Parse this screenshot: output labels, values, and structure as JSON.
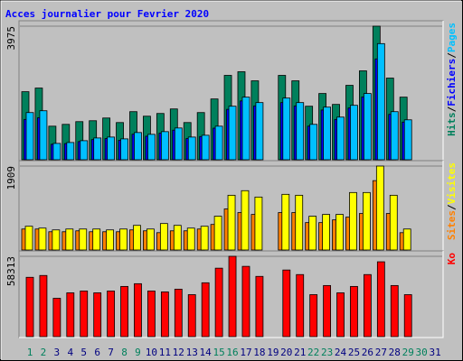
{
  "chart_data": [
    {
      "type": "bar",
      "title": "Acces journalier pour Fevrier 2020",
      "categories": [
        "1",
        "2",
        "3",
        "4",
        "5",
        "6",
        "7",
        "8",
        "9",
        "10",
        "11",
        "12",
        "13",
        "14",
        "15",
        "16",
        "17",
        "18",
        "19",
        "20",
        "21",
        "22",
        "23",
        "24",
        "25",
        "26",
        "27",
        "28",
        "29",
        "30",
        "31"
      ],
      "x_label_colors": [
        "#00805c",
        "#00805c",
        "#000080",
        "#000080",
        "#000080",
        "#000080",
        "#000080",
        "#00805c",
        "#00805c",
        "#000080",
        "#000080",
        "#000080",
        "#000080",
        "#000080",
        "#00805c",
        "#00805c",
        "#000080",
        "#000080",
        "#000080",
        "#000080",
        "#000080",
        "#00805c",
        "#00805c",
        "#000080",
        "#000080",
        "#000080",
        "#000080",
        "#000080",
        "#00805c",
        "#00805c",
        "#000080"
      ],
      "separator": "/",
      "ylim": [
        0,
        3975
      ],
      "yticks": [
        3975
      ],
      "series": [
        {
          "name": "Hits",
          "color": "#00805c",
          "values": [
            2025,
            2133,
            999,
            1053,
            1134,
            1161,
            1242,
            1107,
            1431,
            1296,
            1377,
            1512,
            1107,
            1404,
            1809,
            2511,
            2619,
            2349,
            0,
            2511,
            2349,
            1593,
            1971,
            1647,
            2214,
            2646,
            3975,
            2430,
            1863,
            0,
            0
          ]
        },
        {
          "name": "Fichiers",
          "color": "#0000ff",
          "values": [
            1200,
            1250,
            460,
            480,
            540,
            600,
            630,
            580,
            760,
            700,
            790,
            880,
            630,
            690,
            940,
            1500,
            1750,
            1600,
            0,
            1700,
            1600,
            1000,
            1480,
            1200,
            1540,
            1870,
            3000,
            1350,
            1120,
            0,
            0
          ]
        },
        {
          "name": "Pages",
          "color": "#00c0ff",
          "values": [
            1404,
            1458,
            486,
            513,
            567,
            648,
            675,
            621,
            810,
            756,
            837,
            945,
            675,
            729,
            999,
            1593,
            1863,
            1701,
            0,
            1836,
            1701,
            1053,
            1566,
            1269,
            1620,
            1971,
            3456,
            1431,
            1188,
            0,
            0
          ]
        }
      ]
    },
    {
      "type": "bar",
      "ylim": [
        0,
        1909
      ],
      "yticks": [
        1909
      ],
      "series": [
        {
          "name": "Sites",
          "color": "#ff8000",
          "values": [
            477,
            477,
            415,
            415,
            436,
            415,
            415,
            415,
            457,
            436,
            394,
            436,
            436,
            477,
            581,
            934,
            851,
            809,
            0,
            851,
            851,
            623,
            623,
            685,
            747,
            830,
            1577,
            830,
            394,
            0,
            0
          ]
        },
        {
          "name": "Visites",
          "color": "#ffff00",
          "values": [
            540,
            498,
            457,
            477,
            477,
            477,
            457,
            477,
            560,
            477,
            602,
            560,
            498,
            540,
            768,
            1245,
            1349,
            1204,
            0,
            1266,
            1245,
            768,
            809,
            809,
            1307,
            1307,
            1909,
            1245,
            477,
            0,
            0
          ]
        }
      ]
    },
    {
      "type": "bar",
      "ylim": [
        0,
        58313
      ],
      "yticks": [
        58313
      ],
      "series": [
        {
          "name": "Ko",
          "color": "#ff0000",
          "values": [
            43070,
            44395,
            27830,
            31805,
            33130,
            31805,
            33130,
            36445,
            38430,
            33130,
            32470,
            34455,
            30480,
            39095,
            49695,
            58313,
            51020,
            43730,
            0,
            48370,
            45055,
            30480,
            37105,
            31805,
            36445,
            45055,
            54335,
            37105,
            30480,
            0,
            0
          ]
        }
      ]
    }
  ]
}
